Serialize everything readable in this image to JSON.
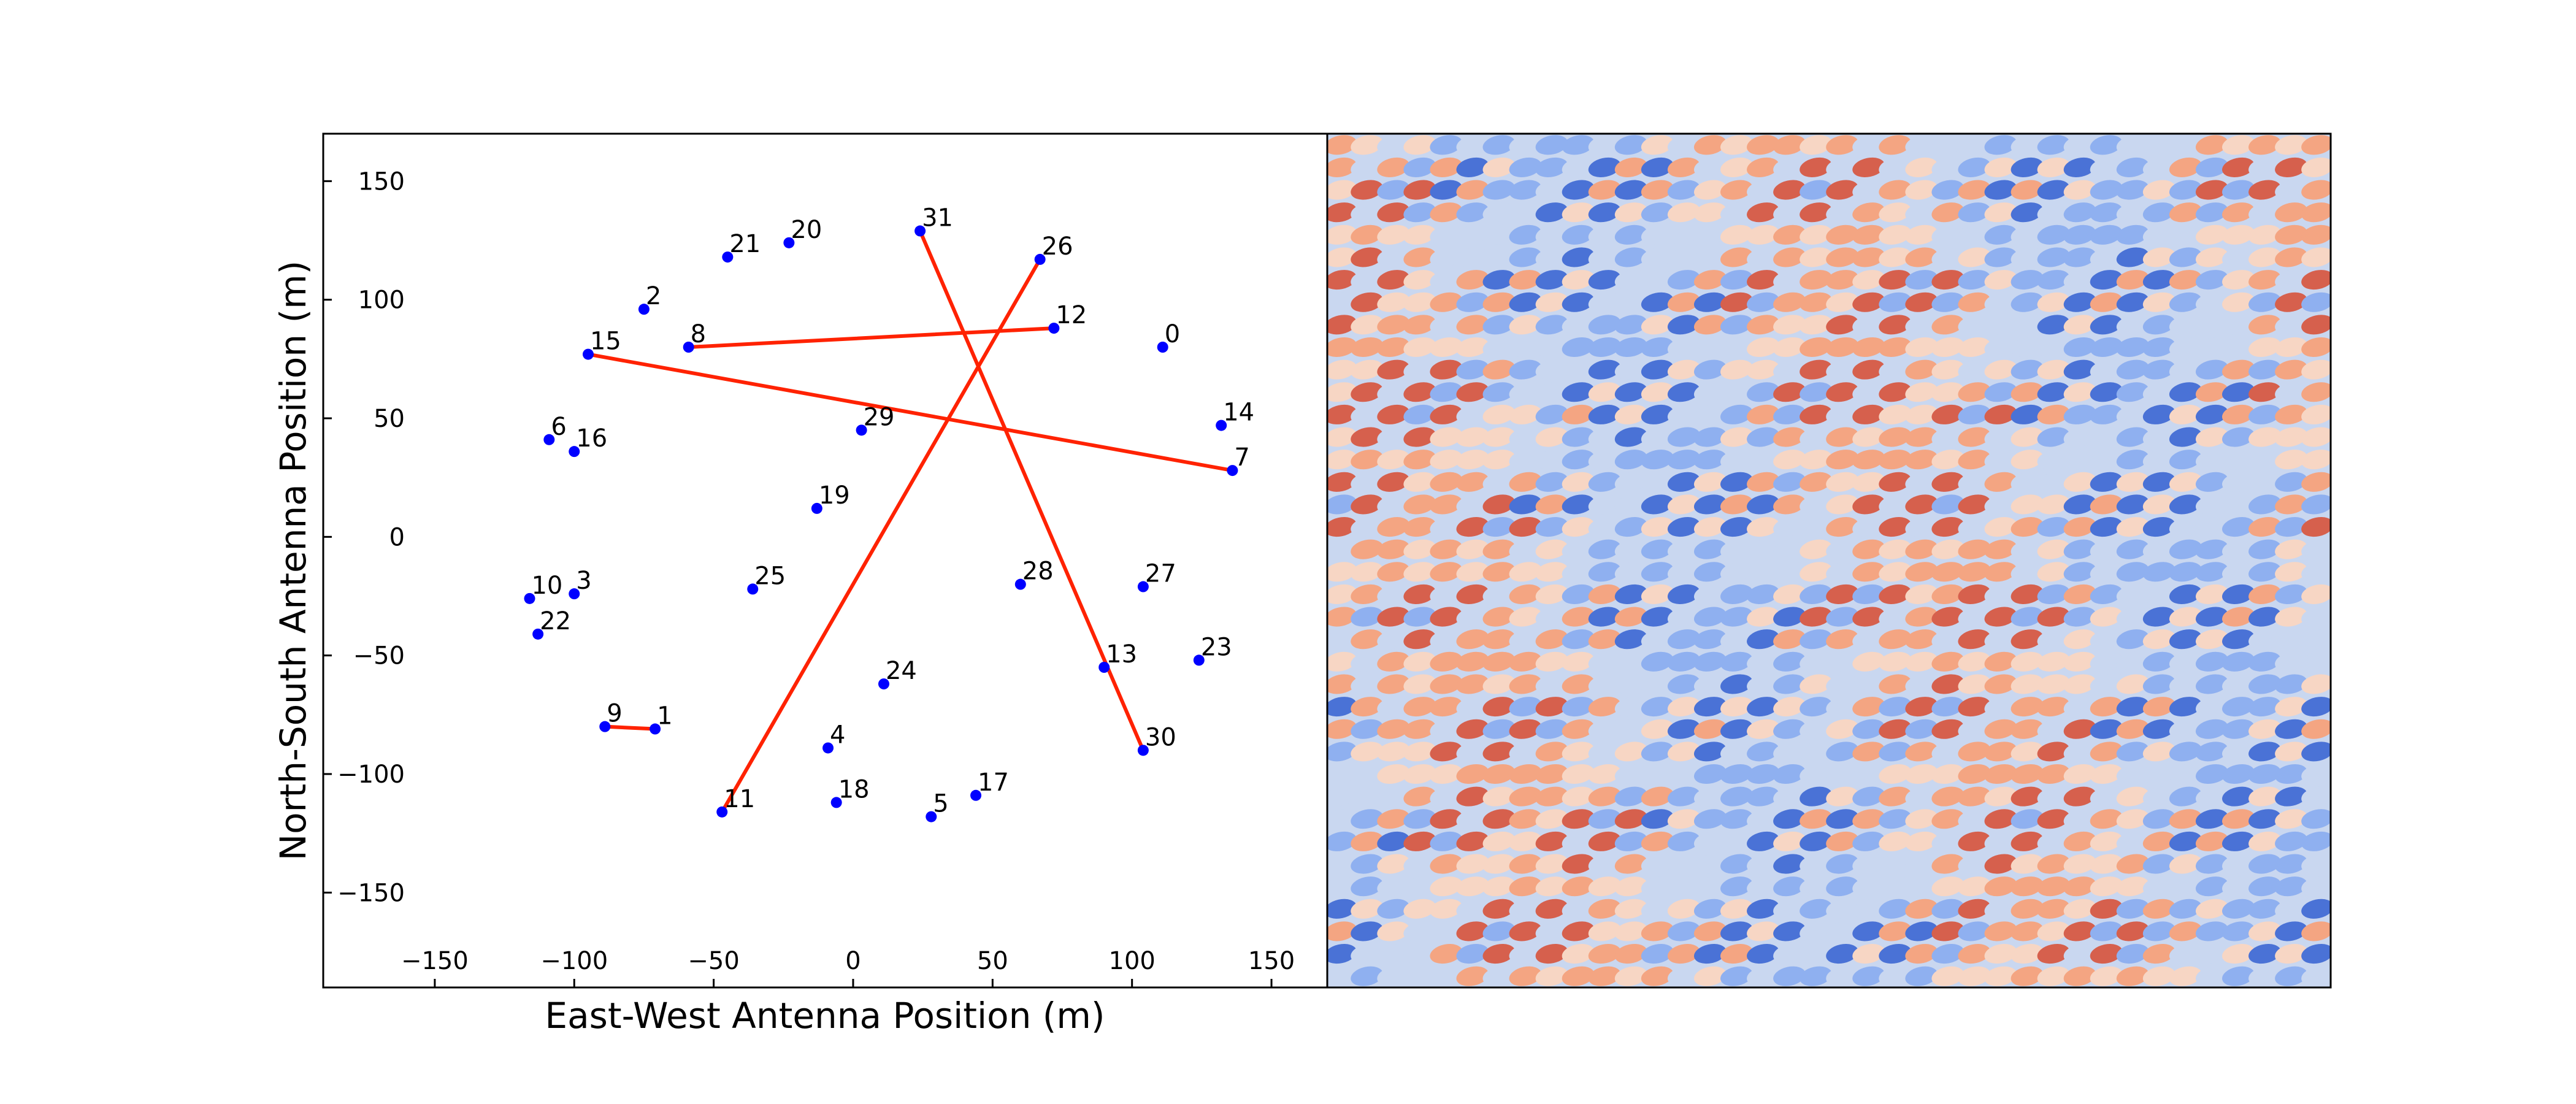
{
  "chart_data": [
    {
      "type": "scatter",
      "title": "",
      "xlabel": "East-West Antenna Position (m)",
      "ylabel": "North-South Antenna Position (m)",
      "xlim": [
        -190,
        170
      ],
      "ylim": [
        -190,
        170
      ],
      "xticks": [
        -150,
        -100,
        -50,
        0,
        50,
        100,
        150
      ],
      "yticks": [
        -150,
        -100,
        -50,
        0,
        50,
        100,
        150
      ],
      "tick_labels_x": [
        "−150",
        "−100",
        "−50",
        "0",
        "50",
        "100",
        "150"
      ],
      "tick_labels_y": [
        "−150",
        "−100",
        "−50",
        "0",
        "50",
        "100",
        "150"
      ],
      "grid": false,
      "antennas": [
        {
          "id": "0",
          "x": 111,
          "y": 80
        },
        {
          "id": "1",
          "x": -71,
          "y": -81
        },
        {
          "id": "2",
          "x": -75,
          "y": 96
        },
        {
          "id": "3",
          "x": -100,
          "y": -24
        },
        {
          "id": "4",
          "x": -9,
          "y": -89
        },
        {
          "id": "5",
          "x": 28,
          "y": -118
        },
        {
          "id": "6",
          "x": -109,
          "y": 41
        },
        {
          "id": "7",
          "x": 136,
          "y": 28
        },
        {
          "id": "8",
          "x": -59,
          "y": 80
        },
        {
          "id": "9",
          "x": -89,
          "y": -80
        },
        {
          "id": "10",
          "x": -116,
          "y": -26
        },
        {
          "id": "11",
          "x": -47,
          "y": -116
        },
        {
          "id": "12",
          "x": 72,
          "y": 88
        },
        {
          "id": "13",
          "x": 90,
          "y": -55
        },
        {
          "id": "14",
          "x": 132,
          "y": 47
        },
        {
          "id": "15",
          "x": -95,
          "y": 77
        },
        {
          "id": "16",
          "x": -100,
          "y": 36
        },
        {
          "id": "17",
          "x": 44,
          "y": -109
        },
        {
          "id": "18",
          "x": -6,
          "y": -112
        },
        {
          "id": "19",
          "x": -13,
          "y": 12
        },
        {
          "id": "20",
          "x": -23,
          "y": 124
        },
        {
          "id": "21",
          "x": -45,
          "y": 118
        },
        {
          "id": "22",
          "x": -113,
          "y": -41
        },
        {
          "id": "23",
          "x": 124,
          "y": -52
        },
        {
          "id": "24",
          "x": 11,
          "y": -62
        },
        {
          "id": "25",
          "x": -36,
          "y": -22
        },
        {
          "id": "26",
          "x": 67,
          "y": 117
        },
        {
          "id": "27",
          "x": 104,
          "y": -21
        },
        {
          "id": "28",
          "x": 60,
          "y": -20
        },
        {
          "id": "29",
          "x": 3,
          "y": 45
        },
        {
          "id": "30",
          "x": 104,
          "y": -90
        },
        {
          "id": "31",
          "x": 24,
          "y": 129
        }
      ],
      "baselines": [
        {
          "from": "9",
          "to": "1"
        },
        {
          "from": "8",
          "to": "12"
        },
        {
          "from": "15",
          "to": "7"
        },
        {
          "from": "11",
          "to": "26"
        },
        {
          "from": "31",
          "to": "30"
        }
      ],
      "point_color": "#0000ff",
      "baseline_color": "#ff2200"
    },
    {
      "type": "heatmap",
      "title": "",
      "colormap": "coolwarm",
      "colors": {
        "pos_strong": "#d6604d",
        "pos_mid": "#f4a582",
        "pos_weak": "#f7d6c4",
        "neg_strong": "#4a72d6",
        "neg_mid": "#8fb0f0",
        "neg_weak": "#c9d7f0"
      },
      "axes_visible": false
    }
  ]
}
